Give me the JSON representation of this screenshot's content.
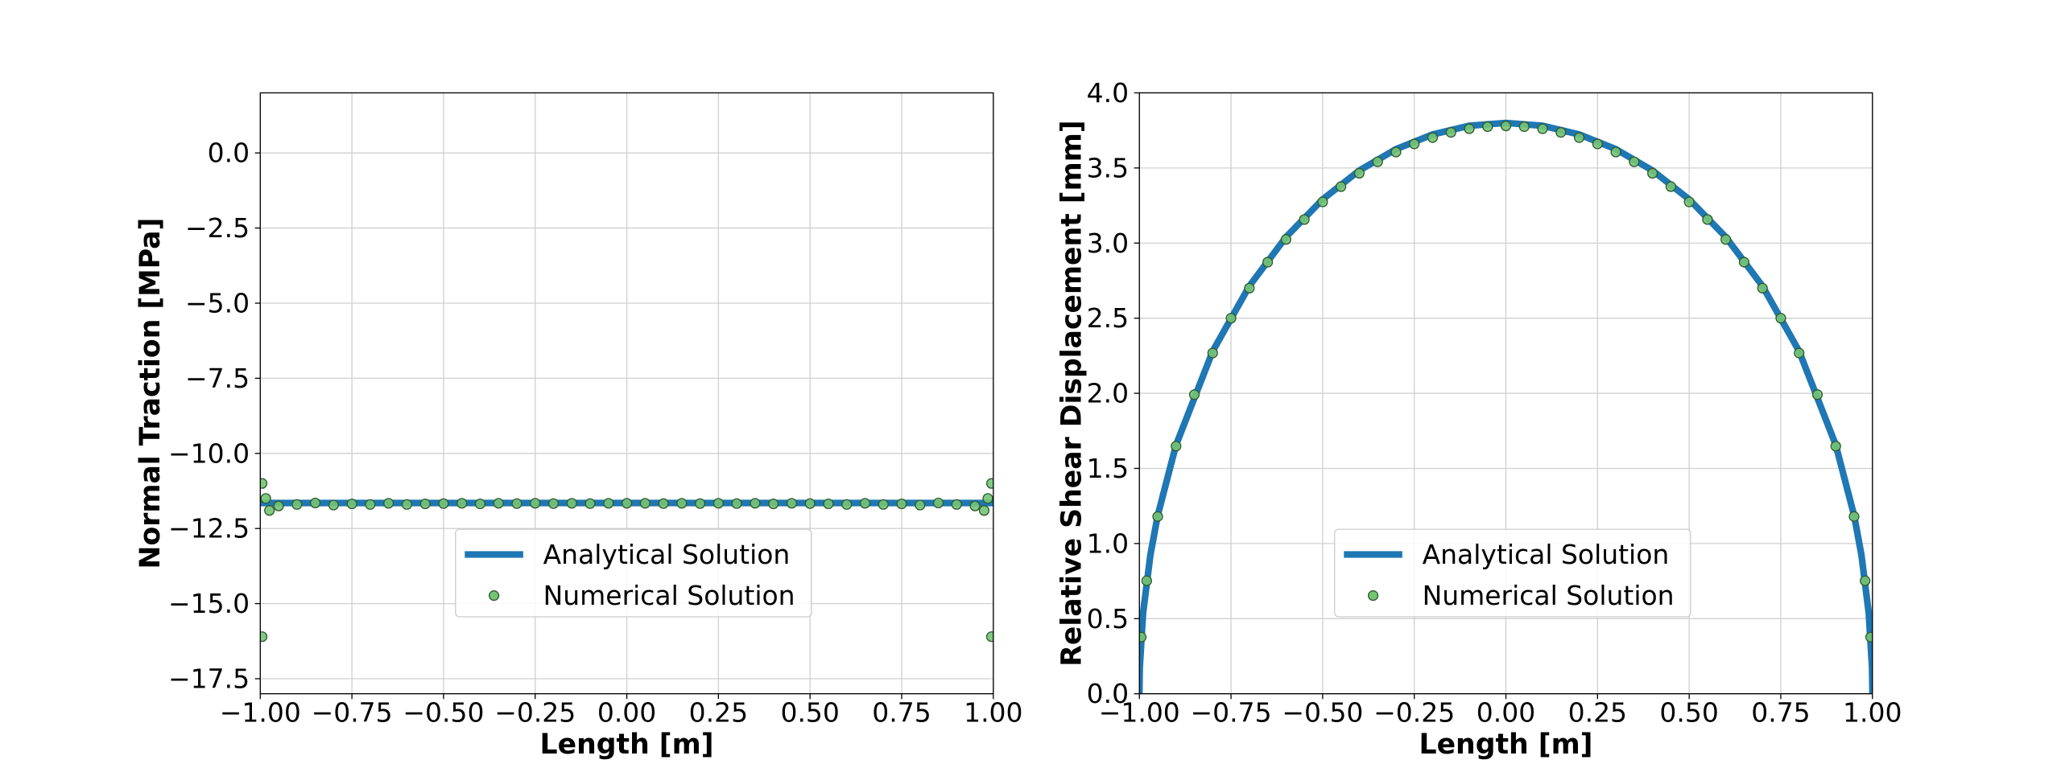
{
  "chart_data": [
    {
      "type": "line",
      "ylabel": "Normal Traction [MPa]",
      "xlabel": "Length [m]",
      "xlim": [
        -1.0,
        1.0
      ],
      "ylim": [
        -18.0,
        2.0
      ],
      "grid": true,
      "legend": "lower center",
      "xticks": [
        {
          "value": -1.0,
          "label": "−1.00"
        },
        {
          "value": -0.75,
          "label": "−0.75"
        },
        {
          "value": -0.5,
          "label": "−0.50"
        },
        {
          "value": -0.25,
          "label": "−0.25"
        },
        {
          "value": 0,
          "label": "0.00"
        },
        {
          "value": 0.25,
          "label": "0.25"
        },
        {
          "value": 0.5,
          "label": "0.50"
        },
        {
          "value": 0.75,
          "label": "0.75"
        },
        {
          "value": 1.0,
          "label": "1.00"
        }
      ],
      "yticks": [
        {
          "value": 0,
          "label": "0.0"
        },
        {
          "value": -2.5,
          "label": "−2.5"
        },
        {
          "value": -5.0,
          "label": "−5.0"
        },
        {
          "value": -7.5,
          "label": "−7.5"
        },
        {
          "value": -10.0,
          "label": "−10.0"
        },
        {
          "value": -12.5,
          "label": "−12.5"
        },
        {
          "value": -15.0,
          "label": "−15.0"
        },
        {
          "value": -17.5,
          "label": "−17.5"
        }
      ],
      "series": [
        {
          "name": "Analytical Solution",
          "type": "line",
          "color": "#1f77b4",
          "x": [
            -1.0,
            1.0
          ],
          "values": [
            -11.65,
            -11.65
          ]
        },
        {
          "name": "Numerical Solution",
          "type": "scatter",
          "color": "#74c476",
          "x": [
            -0.995,
            -0.995,
            -0.985,
            -0.975,
            -0.95,
            -0.9,
            -0.85,
            -0.8,
            -0.75,
            -0.7,
            -0.65,
            -0.6,
            -0.55,
            -0.5,
            -0.45,
            -0.4,
            -0.35,
            -0.3,
            -0.25,
            -0.2,
            -0.15,
            -0.1,
            -0.05,
            0,
            0.05,
            0.1,
            0.15,
            0.2,
            0.25,
            0.3,
            0.35,
            0.4,
            0.45,
            0.5,
            0.55,
            0.6,
            0.65,
            0.7,
            0.75,
            0.8,
            0.85,
            0.9,
            0.95,
            0.975,
            0.985,
            0.995,
            0.995
          ],
          "values": [
            -16.1,
            -11.0,
            -11.5,
            -11.9,
            -11.75,
            -11.7,
            -11.65,
            -11.72,
            -11.68,
            -11.7,
            -11.66,
            -11.7,
            -11.68,
            -11.67,
            -11.66,
            -11.68,
            -11.66,
            -11.67,
            -11.66,
            -11.67,
            -11.66,
            -11.67,
            -11.66,
            -11.66,
            -11.66,
            -11.67,
            -11.66,
            -11.67,
            -11.66,
            -11.67,
            -11.66,
            -11.68,
            -11.66,
            -11.67,
            -11.68,
            -11.7,
            -11.66,
            -11.7,
            -11.68,
            -11.72,
            -11.65,
            -11.7,
            -11.75,
            -11.9,
            -11.5,
            -11.0,
            -16.1
          ]
        }
      ]
    },
    {
      "type": "line",
      "ylabel": "Relative Shear Displacement [mm]",
      "xlabel": "Length [m]",
      "xlim": [
        -1.0,
        1.0
      ],
      "ylim": [
        0,
        4.0
      ],
      "grid": true,
      "legend": "lower center",
      "xticks": [
        {
          "value": -1.0,
          "label": "−1.00"
        },
        {
          "value": -0.75,
          "label": "−0.75"
        },
        {
          "value": -0.5,
          "label": "−0.50"
        },
        {
          "value": -0.25,
          "label": "−0.25"
        },
        {
          "value": 0,
          "label": "0.00"
        },
        {
          "value": 0.25,
          "label": "0.25"
        },
        {
          "value": 0.5,
          "label": "0.50"
        },
        {
          "value": 0.75,
          "label": "0.75"
        },
        {
          "value": 1.0,
          "label": "1.00"
        }
      ],
      "yticks": [
        {
          "value": 0,
          "label": "0.0"
        },
        {
          "value": 0.5,
          "label": "0.5"
        },
        {
          "value": 1.0,
          "label": "1.0"
        },
        {
          "value": 1.5,
          "label": "1.5"
        },
        {
          "value": 2.0,
          "label": "2.0"
        },
        {
          "value": 2.5,
          "label": "2.5"
        },
        {
          "value": 3.0,
          "label": "3.0"
        },
        {
          "value": 3.5,
          "label": "3.5"
        },
        {
          "value": 4.0,
          "label": "4.0"
        }
      ],
      "series": [
        {
          "name": "Analytical Solution",
          "type": "line",
          "color": "#1f77b4",
          "x": [
            -1.0,
            -0.999,
            -0.99,
            -0.97,
            -0.95,
            -0.9,
            -0.8,
            -0.7,
            -0.6,
            -0.5,
            -0.4,
            -0.3,
            -0.2,
            -0.1,
            0,
            0.1,
            0.2,
            0.3,
            0.4,
            0.5,
            0.6,
            0.7,
            0.8,
            0.9,
            0.95,
            0.97,
            0.99,
            0.999,
            1.0
          ],
          "values": [
            0,
            0.17,
            0.536,
            0.924,
            1.187,
            1.656,
            2.28,
            2.714,
            3.04,
            3.291,
            3.483,
            3.625,
            3.723,
            3.781,
            3.8,
            3.781,
            3.723,
            3.625,
            3.483,
            3.291,
            3.04,
            2.714,
            2.28,
            1.656,
            1.187,
            0.924,
            0.536,
            0.17,
            0
          ]
        },
        {
          "name": "Numerical Solution",
          "type": "scatter",
          "color": "#74c476",
          "x": [
            -0.995,
            -0.98,
            -0.95,
            -0.9,
            -0.85,
            -0.8,
            -0.75,
            -0.7,
            -0.65,
            -0.6,
            -0.55,
            -0.5,
            -0.45,
            -0.4,
            -0.35,
            -0.3,
            -0.25,
            -0.2,
            -0.15,
            -0.1,
            -0.05,
            0,
            0.05,
            0.1,
            0.15,
            0.2,
            0.25,
            0.3,
            0.35,
            0.4,
            0.45,
            0.5,
            0.55,
            0.6,
            0.65,
            0.7,
            0.75,
            0.8,
            0.85,
            0.9,
            0.95,
            0.98,
            0.995
          ],
          "values": [
            0.377,
            0.752,
            1.18,
            1.648,
            1.991,
            2.268,
            2.5,
            2.7,
            2.873,
            3.024,
            3.157,
            3.274,
            3.376,
            3.465,
            3.541,
            3.606,
            3.66,
            3.702,
            3.737,
            3.761,
            3.775,
            3.78,
            3.775,
            3.761,
            3.737,
            3.702,
            3.66,
            3.606,
            3.541,
            3.465,
            3.376,
            3.274,
            3.157,
            3.024,
            2.873,
            2.7,
            2.5,
            2.268,
            1.991,
            1.648,
            1.18,
            0.752,
            0.377
          ]
        }
      ]
    }
  ]
}
